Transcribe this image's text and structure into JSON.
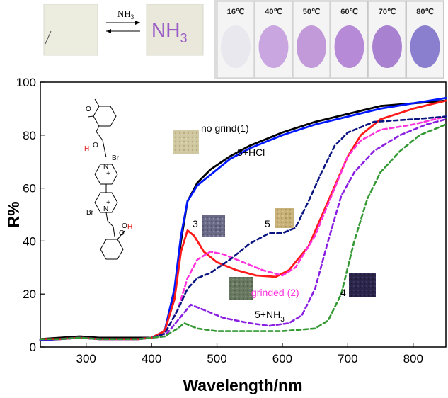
{
  "chart_data": {
    "type": "line",
    "xlabel": "Wavelength/nm",
    "ylabel": "R%",
    "xlim": [
      230,
      850
    ],
    "ylim": [
      0,
      100
    ],
    "x_ticks": [
      300,
      400,
      500,
      600,
      700,
      800
    ],
    "y_ticks": [
      0,
      20,
      40,
      60,
      80,
      100
    ],
    "series": [
      {
        "name": "no grind(1)",
        "color": "#000000",
        "style": "solid",
        "points": [
          [
            230,
            3
          ],
          [
            260,
            3.5
          ],
          [
            290,
            4
          ],
          [
            320,
            3.5
          ],
          [
            350,
            3.5
          ],
          [
            380,
            3.5
          ],
          [
            400,
            3.5
          ],
          [
            420,
            6
          ],
          [
            435,
            20
          ],
          [
            445,
            40
          ],
          [
            455,
            55
          ],
          [
            470,
            62
          ],
          [
            490,
            67
          ],
          [
            520,
            72
          ],
          [
            550,
            76
          ],
          [
            600,
            81
          ],
          [
            650,
            85
          ],
          [
            700,
            88
          ],
          [
            750,
            91
          ],
          [
            800,
            92
          ],
          [
            850,
            93
          ]
        ]
      },
      {
        "name": "3+HCl",
        "color": "#0018ff",
        "style": "solid",
        "points": [
          [
            230,
            2.5
          ],
          [
            260,
            3
          ],
          [
            290,
            3.5
          ],
          [
            320,
            3
          ],
          [
            350,
            3
          ],
          [
            380,
            3
          ],
          [
            400,
            3.5
          ],
          [
            420,
            6
          ],
          [
            435,
            22
          ],
          [
            445,
            42
          ],
          [
            455,
            55
          ],
          [
            470,
            61
          ],
          [
            490,
            65
          ],
          [
            520,
            71
          ],
          [
            550,
            75
          ],
          [
            600,
            80
          ],
          [
            650,
            84
          ],
          [
            700,
            87
          ],
          [
            750,
            90
          ],
          [
            800,
            92
          ],
          [
            850,
            94
          ]
        ]
      },
      {
        "name": "3",
        "color": "#ff1a1a",
        "style": "solid",
        "points": [
          [
            230,
            3
          ],
          [
            260,
            3
          ],
          [
            290,
            3.5
          ],
          [
            320,
            3
          ],
          [
            350,
            3
          ],
          [
            380,
            3
          ],
          [
            400,
            3.5
          ],
          [
            420,
            6
          ],
          [
            435,
            18
          ],
          [
            445,
            36
          ],
          [
            455,
            44
          ],
          [
            465,
            42
          ],
          [
            480,
            36
          ],
          [
            500,
            32
          ],
          [
            530,
            29
          ],
          [
            560,
            27
          ],
          [
            590,
            26.5
          ],
          [
            610,
            29
          ],
          [
            640,
            38
          ],
          [
            670,
            55
          ],
          [
            700,
            72
          ],
          [
            720,
            80
          ],
          [
            750,
            86
          ],
          [
            800,
            90
          ],
          [
            850,
            93
          ]
        ]
      },
      {
        "name": "grinded (2)",
        "color": "#ff33dd",
        "style": "dashed",
        "points": [
          [
            230,
            3
          ],
          [
            260,
            3
          ],
          [
            290,
            3.5
          ],
          [
            320,
            3
          ],
          [
            350,
            3
          ],
          [
            380,
            3
          ],
          [
            400,
            3.5
          ],
          [
            420,
            5
          ],
          [
            440,
            14
          ],
          [
            455,
            26
          ],
          [
            470,
            33
          ],
          [
            490,
            36
          ],
          [
            510,
            35
          ],
          [
            540,
            32
          ],
          [
            570,
            29
          ],
          [
            600,
            27
          ],
          [
            620,
            30
          ],
          [
            650,
            42
          ],
          [
            680,
            60
          ],
          [
            700,
            72
          ],
          [
            720,
            78
          ],
          [
            750,
            82
          ],
          [
            800,
            84
          ],
          [
            850,
            87
          ]
        ]
      },
      {
        "name": "5",
        "color": "#0a1480",
        "style": "dashed",
        "points": [
          [
            230,
            3
          ],
          [
            260,
            3
          ],
          [
            290,
            3.5
          ],
          [
            320,
            3
          ],
          [
            350,
            3
          ],
          [
            380,
            3
          ],
          [
            400,
            3.5
          ],
          [
            420,
            5
          ],
          [
            440,
            14
          ],
          [
            455,
            22
          ],
          [
            470,
            26
          ],
          [
            490,
            28
          ],
          [
            520,
            33
          ],
          [
            550,
            39
          ],
          [
            580,
            43
          ],
          [
            600,
            43
          ],
          [
            620,
            45
          ],
          [
            640,
            55
          ],
          [
            660,
            66
          ],
          [
            680,
            76
          ],
          [
            700,
            81
          ],
          [
            740,
            85
          ],
          [
            800,
            86
          ],
          [
            850,
            87
          ]
        ]
      },
      {
        "name": "5+NH3",
        "color": "#8a1ee0",
        "style": "dashed",
        "points": [
          [
            230,
            3
          ],
          [
            260,
            3
          ],
          [
            290,
            3.5
          ],
          [
            320,
            3
          ],
          [
            350,
            3
          ],
          [
            380,
            3
          ],
          [
            400,
            3.5
          ],
          [
            420,
            4
          ],
          [
            440,
            10
          ],
          [
            460,
            16
          ],
          [
            480,
            14
          ],
          [
            510,
            11
          ],
          [
            550,
            9
          ],
          [
            580,
            8
          ],
          [
            610,
            9
          ],
          [
            630,
            12
          ],
          [
            650,
            22
          ],
          [
            670,
            40
          ],
          [
            690,
            57
          ],
          [
            710,
            66
          ],
          [
            740,
            74
          ],
          [
            780,
            80
          ],
          [
            820,
            84
          ],
          [
            850,
            86
          ]
        ]
      },
      {
        "name": "4",
        "color": "#339933",
        "style": "dashed",
        "points": [
          [
            230,
            3
          ],
          [
            260,
            3
          ],
          [
            290,
            3.5
          ],
          [
            320,
            3
          ],
          [
            350,
            3
          ],
          [
            380,
            3
          ],
          [
            400,
            3.5
          ],
          [
            420,
            4
          ],
          [
            440,
            7
          ],
          [
            450,
            9
          ],
          [
            470,
            7
          ],
          [
            500,
            6
          ],
          [
            550,
            6
          ],
          [
            600,
            6
          ],
          [
            650,
            7
          ],
          [
            670,
            10
          ],
          [
            690,
            20
          ],
          [
            710,
            40
          ],
          [
            730,
            56
          ],
          [
            750,
            66
          ],
          [
            780,
            74
          ],
          [
            810,
            80
          ],
          [
            850,
            84
          ]
        ]
      }
    ],
    "annotations": [
      {
        "text": "no grind(1)",
        "color": "#000000"
      },
      {
        "text": "3+HCl",
        "color": "#000000"
      },
      {
        "text": "3",
        "color": "#000000"
      },
      {
        "text": "5",
        "color": "#000000"
      },
      {
        "text": "grinded (2)",
        "color": "#ff33dd"
      },
      {
        "text": "4",
        "color": "#000000"
      },
      {
        "text": "5+NH",
        "sub": "3",
        "color": "#000000"
      }
    ]
  },
  "insets": {
    "nh3_switch": {
      "arrow_label": "NH",
      "arrow_label_sub": "3",
      "written_text": "NH",
      "written_sub": "3"
    },
    "temperature_vials": [
      "16℃",
      "40℃",
      "50℃",
      "60℃",
      "70℃",
      "80℃"
    ]
  },
  "molecule": {
    "labels": [
      "O",
      "H",
      "O",
      "N",
      "+",
      "Br",
      "N",
      "+",
      "Br",
      "O",
      "O",
      "H"
    ]
  },
  "colors": {
    "vial_colors": [
      "#e8e8ee",
      "#c9a6e0",
      "#c39ad9",
      "#b68ad6",
      "#a881d0",
      "#8a7fce"
    ],
    "paper": "#ececdf",
    "written_ink": "#9a5cc6"
  }
}
